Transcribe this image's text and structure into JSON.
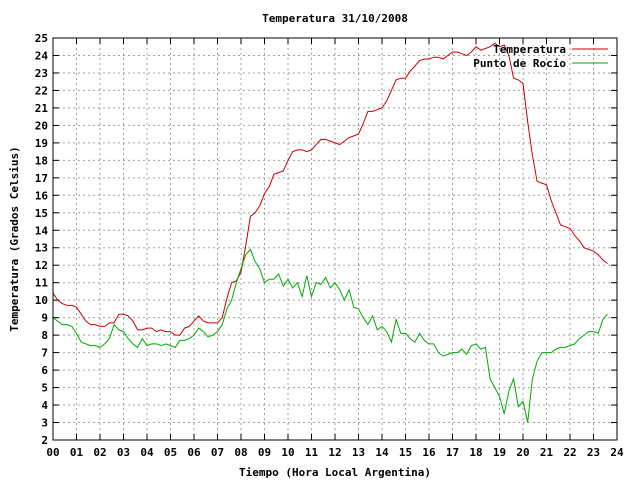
{
  "chart_data": {
    "type": "line",
    "title": "Temperatura 31/10/2008",
    "xlabel": "Tiempo (Hora Local Argentina)",
    "ylabel": "Temperatura (Grados Celsius)",
    "xlim": [
      0,
      24
    ],
    "ylim": [
      2,
      25
    ],
    "grid": true,
    "legend_position": "top-right",
    "x_ticks": [
      "00",
      "01",
      "02",
      "03",
      "04",
      "05",
      "06",
      "07",
      "08",
      "09",
      "10",
      "11",
      "12",
      "13",
      "14",
      "15",
      "16",
      "17",
      "18",
      "19",
      "20",
      "21",
      "22",
      "23",
      "24"
    ],
    "y_ticks": [
      2,
      3,
      4,
      5,
      6,
      7,
      8,
      9,
      10,
      11,
      12,
      13,
      14,
      15,
      16,
      17,
      18,
      19,
      20,
      21,
      22,
      23,
      24,
      25
    ],
    "series": [
      {
        "name": "Temperatura",
        "color": "#cc0000",
        "x": [
          0.0,
          0.2,
          0.4,
          0.6,
          0.8,
          1.0,
          1.2,
          1.4,
          1.6,
          1.8,
          2.0,
          2.2,
          2.4,
          2.6,
          2.8,
          3.0,
          3.2,
          3.4,
          3.6,
          3.8,
          4.0,
          4.2,
          4.4,
          4.6,
          4.8,
          5.0,
          5.2,
          5.4,
          5.6,
          5.8,
          6.0,
          6.2,
          6.4,
          6.6,
          6.8,
          7.0,
          7.2,
          7.4,
          7.6,
          7.8,
          8.0,
          8.2,
          8.4,
          8.6,
          8.8,
          9.0,
          9.2,
          9.4,
          9.6,
          9.8,
          10.0,
          10.2,
          10.4,
          10.6,
          10.8,
          11.0,
          11.2,
          11.4,
          11.6,
          11.8,
          12.0,
          12.2,
          12.4,
          12.6,
          12.8,
          13.0,
          13.2,
          13.4,
          13.6,
          13.8,
          14.0,
          14.2,
          14.4,
          14.6,
          14.8,
          15.0,
          15.2,
          15.4,
          15.6,
          15.8,
          16.0,
          16.2,
          16.4,
          16.6,
          16.8,
          17.0,
          17.2,
          17.4,
          17.6,
          17.8,
          18.0,
          18.2,
          18.4,
          18.6,
          18.8,
          19.0,
          19.2,
          19.4,
          19.6,
          19.8,
          20.0,
          20.2,
          20.4,
          20.6,
          20.8,
          21.0,
          21.2,
          21.4,
          21.6,
          21.8,
          22.0,
          22.2,
          22.4,
          22.6,
          22.8,
          23.0,
          23.2,
          23.4,
          23.6
        ],
        "y": [
          10.4,
          10.0,
          9.8,
          9.7,
          9.7,
          9.6,
          9.2,
          8.8,
          8.6,
          8.6,
          8.5,
          8.5,
          8.7,
          8.7,
          9.2,
          9.2,
          9.1,
          8.8,
          8.3,
          8.3,
          8.4,
          8.4,
          8.2,
          8.3,
          8.2,
          8.2,
          8.0,
          8.0,
          8.4,
          8.5,
          8.8,
          9.1,
          8.8,
          8.7,
          8.7,
          8.7,
          9.0,
          10.1,
          11.0,
          11.1,
          11.6,
          13.1,
          14.8,
          15.0,
          15.4,
          16.1,
          16.5,
          17.2,
          17.3,
          17.4,
          18.0,
          18.5,
          18.6,
          18.6,
          18.5,
          18.6,
          18.9,
          19.2,
          19.2,
          19.1,
          19.0,
          18.9,
          19.1,
          19.3,
          19.4,
          19.5,
          20.1,
          20.8,
          20.8,
          20.9,
          21.0,
          21.4,
          22.0,
          22.6,
          22.7,
          22.7,
          23.1,
          23.4,
          23.7,
          23.8,
          23.8,
          23.9,
          23.9,
          23.8,
          24.0,
          24.2,
          24.2,
          24.1,
          24.0,
          24.2,
          24.5,
          24.3,
          24.4,
          24.5,
          24.7,
          24.5,
          24.6,
          24.0,
          22.7,
          22.6,
          22.4,
          20.2,
          18.3,
          16.8,
          16.7,
          16.6,
          15.7,
          15.0,
          14.3,
          14.2,
          14.1,
          13.7,
          13.4,
          13.0,
          12.9,
          12.8,
          12.6,
          12.3,
          12.1
        ]
      },
      {
        "name": "Punto de Rocío",
        "color": "#00aa00",
        "x": [
          0.0,
          0.2,
          0.4,
          0.6,
          0.8,
          1.0,
          1.2,
          1.4,
          1.6,
          1.8,
          2.0,
          2.2,
          2.4,
          2.6,
          2.8,
          3.0,
          3.2,
          3.4,
          3.6,
          3.8,
          4.0,
          4.2,
          4.4,
          4.6,
          4.8,
          5.0,
          5.2,
          5.4,
          5.6,
          5.8,
          6.0,
          6.2,
          6.4,
          6.6,
          6.8,
          7.0,
          7.2,
          7.4,
          7.6,
          7.8,
          8.0,
          8.2,
          8.4,
          8.6,
          8.8,
          9.0,
          9.2,
          9.4,
          9.6,
          9.8,
          10.0,
          10.2,
          10.4,
          10.6,
          10.8,
          11.0,
          11.2,
          11.4,
          11.6,
          11.8,
          12.0,
          12.2,
          12.4,
          12.6,
          12.8,
          13.0,
          13.2,
          13.4,
          13.6,
          13.8,
          14.0,
          14.2,
          14.4,
          14.6,
          14.8,
          15.0,
          15.2,
          15.4,
          15.6,
          15.8,
          16.0,
          16.2,
          16.4,
          16.6,
          16.8,
          17.0,
          17.2,
          17.4,
          17.6,
          17.8,
          18.0,
          18.2,
          18.4,
          18.6,
          18.8,
          19.0,
          19.2,
          19.4,
          19.6,
          19.8,
          20.0,
          20.2,
          20.4,
          20.6,
          20.8,
          21.0,
          21.2,
          21.4,
          21.6,
          21.8,
          22.0,
          22.2,
          22.4,
          22.6,
          22.8,
          23.0,
          23.2,
          23.4,
          23.6
        ],
        "y": [
          9.0,
          8.8,
          8.6,
          8.6,
          8.5,
          8.1,
          7.6,
          7.5,
          7.4,
          7.4,
          7.3,
          7.5,
          7.8,
          8.6,
          8.3,
          8.2,
          7.8,
          7.5,
          7.3,
          7.8,
          7.4,
          7.5,
          7.5,
          7.4,
          7.5,
          7.4,
          7.3,
          7.7,
          7.7,
          7.8,
          8.0,
          8.4,
          8.2,
          7.9,
          8.0,
          8.2,
          8.6,
          9.5,
          10.0,
          11.0,
          11.8,
          12.6,
          12.9,
          12.2,
          11.8,
          11.0,
          11.2,
          11.2,
          11.5,
          10.8,
          11.2,
          10.7,
          11.0,
          10.2,
          11.4,
          10.2,
          11.0,
          10.9,
          11.3,
          10.7,
          11.0,
          10.6,
          10.0,
          10.6,
          9.6,
          9.5,
          9.0,
          8.6,
          9.1,
          8.3,
          8.5,
          8.2,
          7.6,
          8.9,
          8.1,
          8.1,
          7.8,
          7.6,
          8.1,
          7.7,
          7.5,
          7.5,
          7.0,
          6.8,
          6.9,
          7.0,
          7.0,
          7.2,
          6.9,
          7.4,
          7.5,
          7.2,
          7.3,
          5.5,
          5.0,
          4.5,
          3.5,
          4.8,
          5.5,
          3.9,
          4.2,
          3.0,
          5.5,
          6.5,
          7.0,
          7.0,
          7.0,
          7.2,
          7.3,
          7.3,
          7.4,
          7.5,
          7.8,
          8.0,
          8.2,
          8.2,
          8.1,
          8.9,
          9.2
        ]
      }
    ]
  }
}
